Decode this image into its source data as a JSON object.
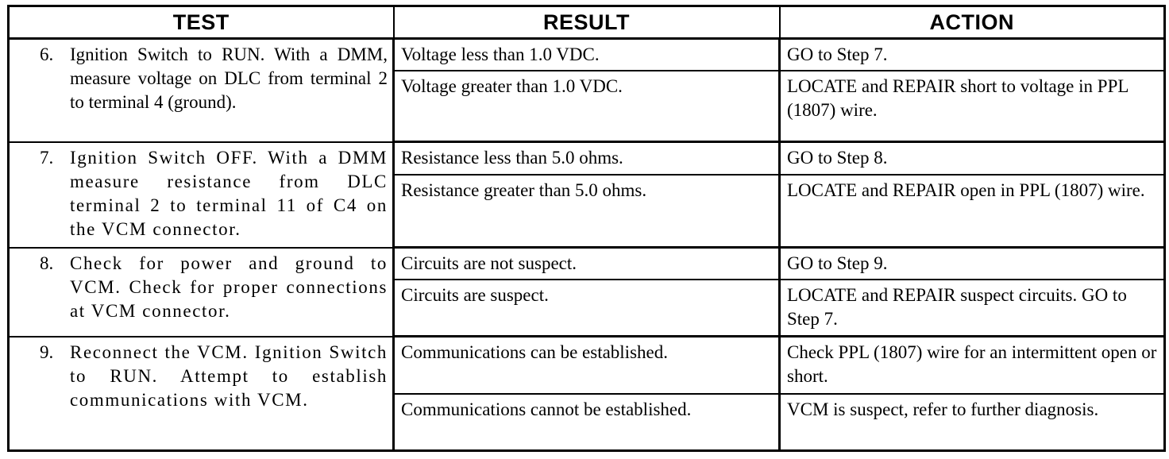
{
  "headers": {
    "test": "TEST",
    "result": "RESULT",
    "action": "ACTION"
  },
  "steps": [
    {
      "number": "6.",
      "test": "Ignition Switch to RUN. With a DMM, measure voltage on DLC from terminal 2 to terminal 4 (ground).",
      "outcomes": [
        {
          "result": "Voltage less than 1.0 VDC.",
          "action": "GO to Step 7."
        },
        {
          "result": "Voltage greater than 1.0 VDC.",
          "action": "LOCATE and REPAIR short to voltage in PPL (1807) wire."
        }
      ]
    },
    {
      "number": "7.",
      "test": "Ignition Switch OFF. With a DMM measure resistance from DLC terminal 2 to terminal 11 of C4 on the VCM connector.",
      "outcomes": [
        {
          "result": "Resistance less than 5.0 ohms.",
          "action": "GO to Step 8."
        },
        {
          "result": "Resistance greater than 5.0 ohms.",
          "action": "LOCATE and REPAIR open in PPL (1807) wire."
        }
      ]
    },
    {
      "number": "8.",
      "test": "Check for power and ground to VCM. Check for proper connections at VCM connector.",
      "outcomes": [
        {
          "result": "Circuits are not suspect.",
          "action": "GO to Step 9."
        },
        {
          "result": "Circuits are suspect.",
          "action": "LOCATE and REPAIR suspect circuits. GO to Step 7."
        }
      ]
    },
    {
      "number": "9.",
      "test": "Reconnect the VCM. Ignition Switch to RUN. Attempt to establish communications with VCM.",
      "outcomes": [
        {
          "result": "Communications can be established.",
          "action": "Check PPL (1807) wire for an intermittent open or short."
        },
        {
          "result": "Communications cannot be established.",
          "action": "VCM is suspect, refer to further diagnosis."
        }
      ]
    }
  ]
}
